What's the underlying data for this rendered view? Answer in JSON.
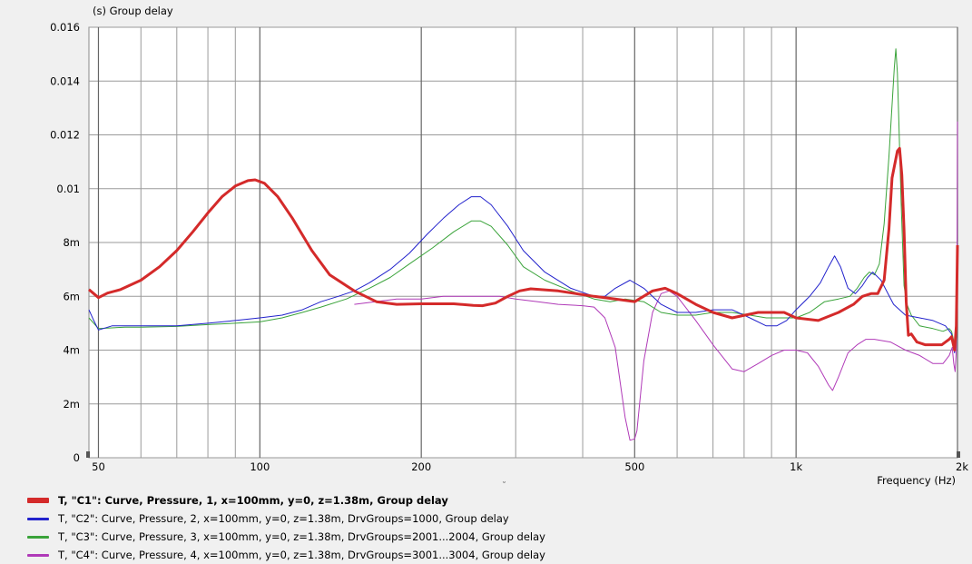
{
  "chart_data": {
    "type": "line",
    "ylabel": "(s)  Group delay",
    "xlabel": "Frequency  (Hz)",
    "xscale": "log",
    "xlim": [
      48,
      2000
    ],
    "ylim": [
      0,
      0.016
    ],
    "grid": true,
    "x_ticks": [
      {
        "value": 50,
        "label": "50"
      },
      {
        "value": 100,
        "label": "100"
      },
      {
        "value": 200,
        "label": "200"
      },
      {
        "value": 500,
        "label": "500"
      },
      {
        "value": 1000,
        "label": "1k"
      },
      {
        "value": 2000,
        "label": "2k"
      }
    ],
    "x_minor": [
      60,
      70,
      80,
      90,
      300,
      400,
      600,
      700,
      800,
      900
    ],
    "y_ticks": [
      {
        "value": 0,
        "label": "0"
      },
      {
        "value": 0.002,
        "label": "2m"
      },
      {
        "value": 0.004,
        "label": "4m"
      },
      {
        "value": 0.006,
        "label": "6m"
      },
      {
        "value": 0.008,
        "label": "8m"
      },
      {
        "value": 0.01,
        "label": "0.01"
      },
      {
        "value": 0.012,
        "label": "0.012"
      },
      {
        "value": 0.014,
        "label": "0.014"
      },
      {
        "value": 0.016,
        "label": "0.016"
      }
    ],
    "series": [
      {
        "name": "T, \"C1\": Curve, Pressure, 1, x=100mm, y=0, z=1.38m, Group delay",
        "color": "#d42a2a",
        "width": 3,
        "bold": true,
        "points": [
          [
            48,
            0.00625
          ],
          [
            50,
            0.00595
          ],
          [
            52,
            0.00612
          ],
          [
            55,
            0.00625
          ],
          [
            60,
            0.0066
          ],
          [
            65,
            0.0071
          ],
          [
            70,
            0.0077
          ],
          [
            75,
            0.0084
          ],
          [
            80,
            0.0091
          ],
          [
            85,
            0.0097
          ],
          [
            90,
            0.0101
          ],
          [
            95,
            0.0103
          ],
          [
            98,
            0.01033
          ],
          [
            102,
            0.0102
          ],
          [
            108,
            0.0097
          ],
          [
            115,
            0.0089
          ],
          [
            125,
            0.0077
          ],
          [
            135,
            0.0068
          ],
          [
            150,
            0.0062
          ],
          [
            165,
            0.0058
          ],
          [
            180,
            0.0057
          ],
          [
            200,
            0.00572
          ],
          [
            230,
            0.00572
          ],
          [
            250,
            0.00566
          ],
          [
            260,
            0.00565
          ],
          [
            275,
            0.00575
          ],
          [
            290,
            0.006
          ],
          [
            305,
            0.0062
          ],
          [
            320,
            0.00628
          ],
          [
            360,
            0.0062
          ],
          [
            420,
            0.006
          ],
          [
            460,
            0.0059
          ],
          [
            500,
            0.0058
          ],
          [
            540,
            0.0062
          ],
          [
            570,
            0.0063
          ],
          [
            600,
            0.0061
          ],
          [
            650,
            0.0057
          ],
          [
            700,
            0.0054
          ],
          [
            760,
            0.0052
          ],
          [
            850,
            0.0054
          ],
          [
            950,
            0.0054
          ],
          [
            1000,
            0.0052
          ],
          [
            1100,
            0.0051
          ],
          [
            1200,
            0.0054
          ],
          [
            1280,
            0.0057
          ],
          [
            1330,
            0.006
          ],
          [
            1380,
            0.0061
          ],
          [
            1420,
            0.0061
          ],
          [
            1460,
            0.0066
          ],
          [
            1490,
            0.0085
          ],
          [
            1510,
            0.0104
          ],
          [
            1545,
            0.0114
          ],
          [
            1560,
            0.0115
          ],
          [
            1575,
            0.0105
          ],
          [
            1590,
            0.0085
          ],
          [
            1605,
            0.0058
          ],
          [
            1620,
            0.00455
          ],
          [
            1640,
            0.0046
          ],
          [
            1680,
            0.0043
          ],
          [
            1740,
            0.0042
          ],
          [
            1800,
            0.0042
          ],
          [
            1870,
            0.0042
          ],
          [
            1930,
            0.0044
          ],
          [
            1950,
            0.0045
          ],
          [
            1960,
            0.0043
          ],
          [
            1975,
            0.004
          ],
          [
            1990,
            0.0049
          ],
          [
            2000,
            0.0079
          ]
        ]
      },
      {
        "name": "T, \"C2\": Curve, Pressure, 2, x=100mm, y=0, z=1.38m, DrvGroups=1000, Group delay",
        "color": "#2222cc",
        "width": 1,
        "bold": false,
        "points": [
          [
            48,
            0.0055
          ],
          [
            49,
            0.0051
          ],
          [
            50,
            0.00475
          ],
          [
            51,
            0.0048
          ],
          [
            53,
            0.0049
          ],
          [
            56,
            0.0049
          ],
          [
            60,
            0.0049
          ],
          [
            70,
            0.0049
          ],
          [
            80,
            0.005
          ],
          [
            90,
            0.0051
          ],
          [
            100,
            0.0052
          ],
          [
            110,
            0.0053
          ],
          [
            120,
            0.0055
          ],
          [
            130,
            0.0058
          ],
          [
            140,
            0.006
          ],
          [
            150,
            0.0062
          ],
          [
            160,
            0.0065
          ],
          [
            175,
            0.007
          ],
          [
            190,
            0.0076
          ],
          [
            205,
            0.0083
          ],
          [
            220,
            0.0089
          ],
          [
            235,
            0.0094
          ],
          [
            248,
            0.0097
          ],
          [
            258,
            0.0097
          ],
          [
            270,
            0.0094
          ],
          [
            290,
            0.0086
          ],
          [
            310,
            0.0077
          ],
          [
            340,
            0.0069
          ],
          [
            380,
            0.0063
          ],
          [
            420,
            0.006
          ],
          [
            440,
            0.006
          ],
          [
            460,
            0.0063
          ],
          [
            490,
            0.0066
          ],
          [
            520,
            0.0063
          ],
          [
            560,
            0.0057
          ],
          [
            600,
            0.0054
          ],
          [
            650,
            0.0054
          ],
          [
            700,
            0.0055
          ],
          [
            760,
            0.0055
          ],
          [
            820,
            0.0052
          ],
          [
            880,
            0.0049
          ],
          [
            920,
            0.0049
          ],
          [
            960,
            0.0051
          ],
          [
            1000,
            0.0055
          ],
          [
            1060,
            0.006
          ],
          [
            1110,
            0.0065
          ],
          [
            1150,
            0.0071
          ],
          [
            1180,
            0.0075
          ],
          [
            1210,
            0.0071
          ],
          [
            1250,
            0.0063
          ],
          [
            1290,
            0.0061
          ],
          [
            1330,
            0.0064
          ],
          [
            1360,
            0.0067
          ],
          [
            1390,
            0.0069
          ],
          [
            1440,
            0.0066
          ],
          [
            1520,
            0.0057
          ],
          [
            1600,
            0.0053
          ],
          [
            1700,
            0.0052
          ],
          [
            1800,
            0.0051
          ],
          [
            1900,
            0.0049
          ],
          [
            1950,
            0.0046
          ],
          [
            1975,
            0.0039
          ],
          [
            1990,
            0.0045
          ],
          [
            2000,
            0.0056
          ]
        ]
      },
      {
        "name": "T, \"C3\": Curve, Pressure, 3, x=100mm, y=0, z=1.38m, DrvGroups=2001...2004, Group delay",
        "color": "#3aa33a",
        "width": 1,
        "bold": false,
        "points": [
          [
            48,
            0.0052
          ],
          [
            50,
            0.0048
          ],
          [
            52,
            0.00482
          ],
          [
            56,
            0.00485
          ],
          [
            60,
            0.00485
          ],
          [
            70,
            0.00488
          ],
          [
            80,
            0.00495
          ],
          [
            90,
            0.005
          ],
          [
            100,
            0.00505
          ],
          [
            110,
            0.0052
          ],
          [
            120,
            0.0054
          ],
          [
            130,
            0.0056
          ],
          [
            145,
            0.0059
          ],
          [
            160,
            0.0063
          ],
          [
            175,
            0.0067
          ],
          [
            190,
            0.0072
          ],
          [
            210,
            0.0078
          ],
          [
            230,
            0.0084
          ],
          [
            248,
            0.0088
          ],
          [
            258,
            0.0088
          ],
          [
            270,
            0.0086
          ],
          [
            290,
            0.0079
          ],
          [
            310,
            0.0071
          ],
          [
            340,
            0.0066
          ],
          [
            380,
            0.0062
          ],
          [
            420,
            0.0059
          ],
          [
            450,
            0.0058
          ],
          [
            480,
            0.0059
          ],
          [
            520,
            0.0058
          ],
          [
            560,
            0.0054
          ],
          [
            600,
            0.0053
          ],
          [
            650,
            0.0053
          ],
          [
            700,
            0.0054
          ],
          [
            760,
            0.0054
          ],
          [
            820,
            0.0053
          ],
          [
            880,
            0.0052
          ],
          [
            960,
            0.0052
          ],
          [
            1000,
            0.0052
          ],
          [
            1060,
            0.0054
          ],
          [
            1130,
            0.0058
          ],
          [
            1200,
            0.0059
          ],
          [
            1260,
            0.006
          ],
          [
            1300,
            0.0063
          ],
          [
            1340,
            0.0067
          ],
          [
            1370,
            0.0069
          ],
          [
            1400,
            0.0068
          ],
          [
            1430,
            0.0072
          ],
          [
            1460,
            0.0087
          ],
          [
            1490,
            0.0112
          ],
          [
            1510,
            0.0131
          ],
          [
            1525,
            0.0145
          ],
          [
            1535,
            0.0152
          ],
          [
            1545,
            0.0143
          ],
          [
            1555,
            0.0125
          ],
          [
            1570,
            0.0095
          ],
          [
            1590,
            0.0064
          ],
          [
            1610,
            0.0057
          ],
          [
            1640,
            0.0053
          ],
          [
            1700,
            0.0049
          ],
          [
            1800,
            0.0048
          ],
          [
            1880,
            0.0047
          ],
          [
            1930,
            0.0048
          ],
          [
            1950,
            0.0047
          ],
          [
            1965,
            0.0044
          ],
          [
            1980,
            0.004
          ],
          [
            1992,
            0.0046
          ],
          [
            2000,
            0.0054
          ]
        ]
      },
      {
        "name": "T, \"C4\": Curve, Pressure, 4, x=100mm, y=0, z=1.38m, DrvGroups=3001...3004, Group delay",
        "color": "#b03ab8",
        "width": 1,
        "bold": false,
        "points": [
          [
            150,
            0.0057
          ],
          [
            180,
            0.0059
          ],
          [
            200,
            0.0059
          ],
          [
            220,
            0.006
          ],
          [
            250,
            0.006
          ],
          [
            280,
            0.006
          ],
          [
            300,
            0.0059
          ],
          [
            330,
            0.0058
          ],
          [
            360,
            0.0057
          ],
          [
            400,
            0.00565
          ],
          [
            420,
            0.0056
          ],
          [
            440,
            0.0052
          ],
          [
            460,
            0.0041
          ],
          [
            480,
            0.0015
          ],
          [
            490,
            0.00065
          ],
          [
            500,
            0.0007
          ],
          [
            505,
            0.001
          ],
          [
            520,
            0.0036
          ],
          [
            540,
            0.0054
          ],
          [
            560,
            0.0061
          ],
          [
            580,
            0.0062
          ],
          [
            600,
            0.006
          ],
          [
            650,
            0.0051
          ],
          [
            700,
            0.0042
          ],
          [
            760,
            0.0033
          ],
          [
            800,
            0.0032
          ],
          [
            850,
            0.0035
          ],
          [
            900,
            0.0038
          ],
          [
            950,
            0.004
          ],
          [
            1000,
            0.004
          ],
          [
            1050,
            0.0039
          ],
          [
            1100,
            0.0034
          ],
          [
            1150,
            0.0027
          ],
          [
            1170,
            0.0025
          ],
          [
            1200,
            0.003
          ],
          [
            1250,
            0.0039
          ],
          [
            1300,
            0.0042
          ],
          [
            1350,
            0.0044
          ],
          [
            1400,
            0.0044
          ],
          [
            1500,
            0.0043
          ],
          [
            1600,
            0.004
          ],
          [
            1700,
            0.0038
          ],
          [
            1800,
            0.0035
          ],
          [
            1880,
            0.0035
          ],
          [
            1930,
            0.0038
          ],
          [
            1955,
            0.0041
          ],
          [
            1968,
            0.0035
          ],
          [
            1980,
            0.0032
          ],
          [
            1990,
            0.004
          ],
          [
            1995,
            0.0065
          ],
          [
            2000,
            0.0125
          ]
        ]
      }
    ]
  }
}
